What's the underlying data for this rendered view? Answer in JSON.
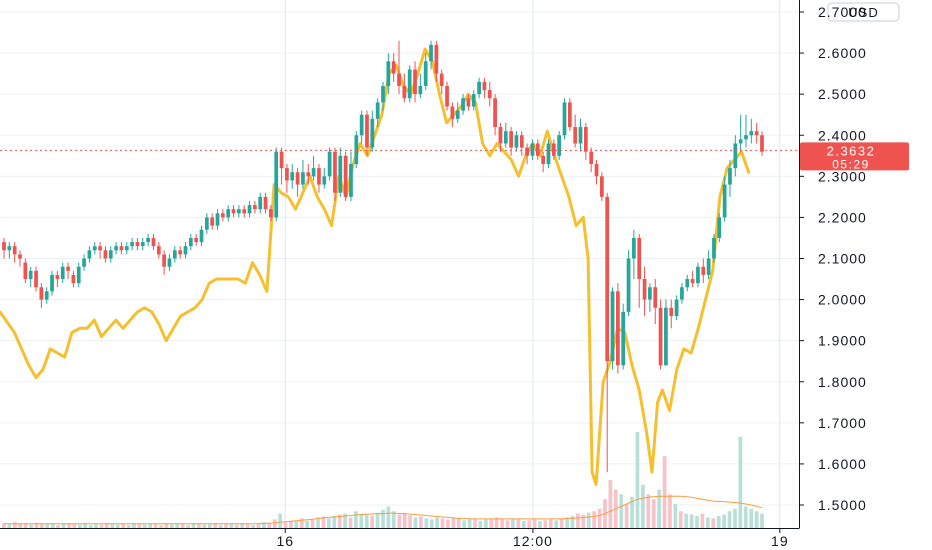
{
  "chart_data": {
    "type": "candlestick",
    "currency": "USD",
    "y_ticks": [
      "2.7000",
      "2.6000",
      "2.5000",
      "2.4000",
      "2.3000",
      "2.2000",
      "2.1000",
      "2.0000",
      "1.9000",
      "1.8000",
      "1.7000",
      "1.6000",
      "1.5000"
    ],
    "y_tick_values": [
      2.7,
      2.6,
      2.5,
      2.4,
      2.3,
      2.2,
      2.1,
      2.0,
      1.9,
      1.8,
      1.7,
      1.6,
      1.5
    ],
    "ylim": [
      1.45,
      2.78
    ],
    "x_ticks": [
      {
        "label": "16",
        "t": 0.357
      },
      {
        "label": "12:00",
        "t": 0.667
      },
      {
        "label": "19",
        "t": 0.976
      }
    ],
    "price": {
      "last": "2.3632",
      "countdown": "05:29",
      "value": 2.3632
    },
    "candles": [
      [
        2.14,
        2.12,
        2.15,
        2.1
      ],
      [
        2.12,
        2.13,
        2.14,
        2.1
      ],
      [
        2.13,
        2.11,
        2.14,
        2.09
      ],
      [
        2.11,
        2.1,
        2.12,
        2.08
      ],
      [
        2.09,
        2.05,
        2.1,
        2.04
      ],
      [
        2.05,
        2.07,
        2.08,
        2.03
      ],
      [
        2.07,
        2.03,
        2.08,
        2.02
      ],
      [
        2.03,
        2.0,
        2.04,
        1.98
      ],
      [
        2.0,
        2.02,
        2.03,
        1.99
      ],
      [
        2.02,
        2.06,
        2.07,
        2.01
      ],
      [
        2.06,
        2.05,
        2.07,
        2.03
      ],
      [
        2.05,
        2.08,
        2.09,
        2.04
      ],
      [
        2.08,
        2.07,
        2.09,
        2.05
      ],
      [
        2.06,
        2.04,
        2.07,
        2.03
      ],
      [
        2.04,
        2.08,
        2.09,
        2.03
      ],
      [
        2.08,
        2.1,
        2.11,
        2.07
      ],
      [
        2.1,
        2.12,
        2.13,
        2.09
      ],
      [
        2.12,
        2.13,
        2.14,
        2.11
      ],
      [
        2.13,
        2.12,
        2.14,
        2.1
      ],
      [
        2.12,
        2.1,
        2.13,
        2.09
      ],
      [
        2.1,
        2.12,
        2.13,
        2.09
      ],
      [
        2.12,
        2.13,
        2.14,
        2.11
      ],
      [
        2.13,
        2.12,
        2.14,
        2.11
      ],
      [
        2.12,
        2.13,
        2.14,
        2.11
      ],
      [
        2.13,
        2.14,
        2.15,
        2.12
      ],
      [
        2.14,
        2.13,
        2.15,
        2.12
      ],
      [
        2.13,
        2.14,
        2.15,
        2.12
      ],
      [
        2.14,
        2.15,
        2.16,
        2.13
      ],
      [
        2.15,
        2.13,
        2.16,
        2.12
      ],
      [
        2.13,
        2.11,
        2.14,
        2.1
      ],
      [
        2.11,
        2.08,
        2.12,
        2.06
      ],
      [
        2.08,
        2.1,
        2.11,
        2.07
      ],
      [
        2.1,
        2.12,
        2.13,
        2.09
      ],
      [
        2.12,
        2.11,
        2.13,
        2.1
      ],
      [
        2.11,
        2.13,
        2.14,
        2.1
      ],
      [
        2.13,
        2.15,
        2.16,
        2.12
      ],
      [
        2.15,
        2.14,
        2.16,
        2.13
      ],
      [
        2.14,
        2.17,
        2.18,
        2.13
      ],
      [
        2.17,
        2.2,
        2.21,
        2.16
      ],
      [
        2.2,
        2.18,
        2.21,
        2.17
      ],
      [
        2.18,
        2.21,
        2.22,
        2.17
      ],
      [
        2.21,
        2.2,
        2.22,
        2.19
      ],
      [
        2.2,
        2.22,
        2.23,
        2.19
      ],
      [
        2.22,
        2.21,
        2.23,
        2.2
      ],
      [
        2.21,
        2.22,
        2.23,
        2.2
      ],
      [
        2.22,
        2.21,
        2.23,
        2.2
      ],
      [
        2.21,
        2.23,
        2.24,
        2.2
      ],
      [
        2.23,
        2.22,
        2.24,
        2.21
      ],
      [
        2.22,
        2.25,
        2.26,
        2.21
      ],
      [
        2.25,
        2.22,
        2.26,
        2.21
      ],
      [
        2.22,
        2.2,
        2.23,
        2.19
      ],
      [
        2.2,
        2.36,
        2.37,
        2.19
      ],
      [
        2.36,
        2.32,
        2.37,
        2.28
      ],
      [
        2.32,
        2.29,
        2.33,
        2.26
      ],
      [
        2.29,
        2.31,
        2.33,
        2.27
      ],
      [
        2.31,
        2.28,
        2.32,
        2.25
      ],
      [
        2.28,
        2.31,
        2.34,
        2.27
      ],
      [
        2.31,
        2.3,
        2.33,
        2.28
      ],
      [
        2.3,
        2.32,
        2.35,
        2.29
      ],
      [
        2.32,
        2.28,
        2.33,
        2.26
      ],
      [
        2.28,
        2.3,
        2.32,
        2.27
      ],
      [
        2.3,
        2.36,
        2.37,
        2.29
      ],
      [
        2.36,
        2.26,
        2.37,
        2.24
      ],
      [
        2.26,
        2.35,
        2.37,
        2.25
      ],
      [
        2.35,
        2.25,
        2.36,
        2.24
      ],
      [
        2.25,
        2.33,
        2.36,
        2.24
      ],
      [
        2.33,
        2.4,
        2.41,
        2.32
      ],
      [
        2.4,
        2.45,
        2.46,
        2.38
      ],
      [
        2.45,
        2.37,
        2.46,
        2.35
      ],
      [
        2.37,
        2.44,
        2.46,
        2.36
      ],
      [
        2.44,
        2.48,
        2.49,
        2.42
      ],
      [
        2.48,
        2.52,
        2.53,
        2.46
      ],
      [
        2.52,
        2.58,
        2.6,
        2.5
      ],
      [
        2.58,
        2.55,
        2.6,
        2.53
      ],
      [
        2.55,
        2.52,
        2.63,
        2.5
      ],
      [
        2.52,
        2.49,
        2.55,
        2.48
      ],
      [
        2.49,
        2.56,
        2.57,
        2.48
      ],
      [
        2.56,
        2.5,
        2.58,
        2.48
      ],
      [
        2.5,
        2.52,
        2.55,
        2.49
      ],
      [
        2.52,
        2.58,
        2.6,
        2.51
      ],
      [
        2.58,
        2.62,
        2.63,
        2.56
      ],
      [
        2.62,
        2.55,
        2.63,
        2.53
      ],
      [
        2.55,
        2.52,
        2.56,
        2.5
      ],
      [
        2.52,
        2.47,
        2.53,
        2.46
      ],
      [
        2.47,
        2.44,
        2.48,
        2.42
      ],
      [
        2.44,
        2.46,
        2.48,
        2.43
      ],
      [
        2.46,
        2.49,
        2.5,
        2.45
      ],
      [
        2.49,
        2.47,
        2.5,
        2.46
      ],
      [
        2.47,
        2.5,
        2.51,
        2.46
      ],
      [
        2.5,
        2.53,
        2.54,
        2.49
      ],
      [
        2.53,
        2.51,
        2.54,
        2.49
      ],
      [
        2.51,
        2.49,
        2.53,
        2.47
      ],
      [
        2.49,
        2.42,
        2.5,
        2.4
      ],
      [
        2.42,
        2.38,
        2.43,
        2.36
      ],
      [
        2.38,
        2.41,
        2.43,
        2.37
      ],
      [
        2.41,
        2.37,
        2.42,
        2.35
      ],
      [
        2.37,
        2.4,
        2.41,
        2.36
      ],
      [
        2.4,
        2.37,
        2.41,
        2.35
      ],
      [
        2.37,
        2.35,
        2.38,
        2.33
      ],
      [
        2.35,
        2.38,
        2.39,
        2.34
      ],
      [
        2.38,
        2.35,
        2.39,
        2.34
      ],
      [
        2.35,
        2.33,
        2.36,
        2.31
      ],
      [
        2.33,
        2.38,
        2.39,
        2.32
      ],
      [
        2.38,
        2.35,
        2.39,
        2.34
      ],
      [
        2.35,
        2.4,
        2.41,
        2.34
      ],
      [
        2.4,
        2.48,
        2.49,
        2.39
      ],
      [
        2.48,
        2.42,
        2.49,
        2.41
      ],
      [
        2.42,
        2.38,
        2.45,
        2.37
      ],
      [
        2.38,
        2.42,
        2.44,
        2.36
      ],
      [
        2.42,
        2.36,
        2.43,
        2.34
      ],
      [
        2.36,
        2.33,
        2.37,
        2.31
      ],
      [
        2.33,
        2.3,
        2.34,
        2.28
      ],
      [
        2.3,
        2.25,
        2.31,
        2.24
      ],
      [
        2.25,
        1.85,
        2.26,
        1.58
      ],
      [
        1.85,
        2.02,
        2.03,
        1.83
      ],
      [
        2.02,
        1.84,
        2.04,
        1.82
      ],
      [
        1.84,
        1.97,
        1.99,
        1.83
      ],
      [
        1.97,
        2.1,
        2.12,
        1.96
      ],
      [
        2.1,
        2.15,
        2.17,
        2.05
      ],
      [
        2.15,
        2.05,
        2.16,
        1.98
      ],
      [
        2.05,
        2.0,
        2.08,
        1.96
      ],
      [
        2.0,
        2.03,
        2.04,
        1.97
      ],
      [
        2.03,
        1.98,
        2.05,
        1.94
      ],
      [
        1.98,
        1.84,
        2.0,
        1.83
      ],
      [
        1.84,
        1.98,
        2.0,
        1.84
      ],
      [
        1.98,
        1.96,
        2.0,
        1.93
      ],
      [
        1.96,
        2.0,
        2.01,
        1.95
      ],
      [
        2.0,
        2.03,
        2.04,
        1.99
      ],
      [
        2.03,
        2.05,
        2.06,
        2.02
      ],
      [
        2.05,
        2.04,
        2.07,
        2.03
      ],
      [
        2.04,
        2.08,
        2.09,
        2.03
      ],
      [
        2.08,
        2.06,
        2.1,
        2.04
      ],
      [
        2.06,
        2.1,
        2.12,
        2.05
      ],
      [
        2.1,
        2.15,
        2.16,
        2.09
      ],
      [
        2.15,
        2.2,
        2.21,
        2.14
      ],
      [
        2.2,
        2.28,
        2.3,
        2.19
      ],
      [
        2.28,
        2.32,
        2.34,
        2.25
      ],
      [
        2.32,
        2.38,
        2.4,
        2.3
      ],
      [
        2.38,
        2.39,
        2.45,
        2.36
      ],
      [
        2.39,
        2.4,
        2.45,
        2.37
      ],
      [
        2.4,
        2.41,
        2.44,
        2.38
      ],
      [
        2.41,
        2.4,
        2.43,
        2.38
      ],
      [
        2.4,
        2.36,
        2.41,
        2.35
      ]
    ],
    "line": [
      [
        0.0,
        1.97
      ],
      [
        0.018,
        1.92
      ],
      [
        0.027,
        1.88
      ],
      [
        0.036,
        1.84
      ],
      [
        0.045,
        1.81
      ],
      [
        0.054,
        1.83
      ],
      [
        0.063,
        1.88
      ],
      [
        0.072,
        1.87
      ],
      [
        0.081,
        1.86
      ],
      [
        0.09,
        1.92
      ],
      [
        0.1,
        1.93
      ],
      [
        0.109,
        1.93
      ],
      [
        0.118,
        1.95
      ],
      [
        0.127,
        1.91
      ],
      [
        0.136,
        1.93
      ],
      [
        0.145,
        1.95
      ],
      [
        0.154,
        1.93
      ],
      [
        0.163,
        1.95
      ],
      [
        0.172,
        1.97
      ],
      [
        0.181,
        1.98
      ],
      [
        0.19,
        1.97
      ],
      [
        0.199,
        1.94
      ],
      [
        0.208,
        1.9
      ],
      [
        0.217,
        1.93
      ],
      [
        0.226,
        1.96
      ],
      [
        0.235,
        1.97
      ],
      [
        0.244,
        1.98
      ],
      [
        0.253,
        2.0
      ],
      [
        0.262,
        2.04
      ],
      [
        0.271,
        2.05
      ],
      [
        0.28,
        2.05
      ],
      [
        0.289,
        2.05
      ],
      [
        0.298,
        2.05
      ],
      [
        0.307,
        2.04
      ],
      [
        0.316,
        2.09
      ],
      [
        0.325,
        2.06
      ],
      [
        0.334,
        2.02
      ],
      [
        0.343,
        2.28
      ],
      [
        0.352,
        2.26
      ],
      [
        0.361,
        2.25
      ],
      [
        0.37,
        2.22
      ],
      [
        0.379,
        2.26
      ],
      [
        0.388,
        2.3
      ],
      [
        0.397,
        2.25
      ],
      [
        0.406,
        2.22
      ],
      [
        0.415,
        2.18
      ],
      [
        0.424,
        2.3
      ],
      [
        0.433,
        2.25
      ],
      [
        0.442,
        2.33
      ],
      [
        0.451,
        2.38
      ],
      [
        0.46,
        2.35
      ],
      [
        0.469,
        2.4
      ],
      [
        0.478,
        2.45
      ],
      [
        0.487,
        2.55
      ],
      [
        0.496,
        2.57
      ],
      [
        0.505,
        2.52
      ],
      [
        0.514,
        2.5
      ],
      [
        0.523,
        2.55
      ],
      [
        0.532,
        2.61
      ],
      [
        0.541,
        2.58
      ],
      [
        0.55,
        2.5
      ],
      [
        0.559,
        2.43
      ],
      [
        0.568,
        2.45
      ],
      [
        0.577,
        2.47
      ],
      [
        0.586,
        2.5
      ],
      [
        0.595,
        2.48
      ],
      [
        0.604,
        2.38
      ],
      [
        0.613,
        2.35
      ],
      [
        0.622,
        2.38
      ],
      [
        0.631,
        2.36
      ],
      [
        0.64,
        2.34
      ],
      [
        0.649,
        2.3
      ],
      [
        0.658,
        2.35
      ],
      [
        0.667,
        2.38
      ],
      [
        0.676,
        2.35
      ],
      [
        0.685,
        2.41
      ],
      [
        0.694,
        2.35
      ],
      [
        0.703,
        2.3
      ],
      [
        0.712,
        2.25
      ],
      [
        0.721,
        2.18
      ],
      [
        0.73,
        2.2
      ],
      [
        0.736,
        2.1
      ],
      [
        0.741,
        1.58
      ],
      [
        0.746,
        1.55
      ],
      [
        0.755,
        1.8
      ],
      [
        0.764,
        1.85
      ],
      [
        0.773,
        1.93
      ],
      [
        0.782,
        1.92
      ],
      [
        0.791,
        1.84
      ],
      [
        0.8,
        1.78
      ],
      [
        0.809,
        1.68
      ],
      [
        0.816,
        1.58
      ],
      [
        0.823,
        1.75
      ],
      [
        0.829,
        1.78
      ],
      [
        0.838,
        1.73
      ],
      [
        0.847,
        1.83
      ],
      [
        0.856,
        1.88
      ],
      [
        0.865,
        1.87
      ],
      [
        0.874,
        1.93
      ],
      [
        0.883,
        2.0
      ],
      [
        0.892,
        2.07
      ],
      [
        0.901,
        2.25
      ],
      [
        0.91,
        2.32
      ],
      [
        0.919,
        2.34
      ],
      [
        0.928,
        2.36
      ],
      [
        0.937,
        2.31
      ]
    ],
    "volume": [
      0.1,
      0.08,
      0.12,
      0.09,
      0.1,
      0.07,
      0.11,
      0.09,
      0.08,
      0.1,
      0.06,
      0.09,
      0.1,
      0.08,
      0.07,
      0.09,
      0.06,
      0.08,
      0.07,
      0.1,
      0.08,
      0.07,
      0.09,
      0.06,
      0.1,
      0.08,
      0.07,
      0.09,
      0.08,
      0.06,
      0.1,
      0.07,
      0.09,
      0.08,
      0.06,
      0.1,
      0.09,
      0.07,
      0.08,
      0.1,
      0.06,
      0.08,
      0.09,
      0.07,
      0.1,
      0.08,
      0.06,
      0.09,
      0.12,
      0.1,
      0.18,
      0.3,
      0.12,
      0.15,
      0.14,
      0.2,
      0.15,
      0.18,
      0.22,
      0.24,
      0.2,
      0.25,
      0.28,
      0.3,
      0.22,
      0.35,
      0.3,
      0.28,
      0.25,
      0.32,
      0.38,
      0.45,
      0.35,
      0.28,
      0.3,
      0.26,
      0.22,
      0.24,
      0.2,
      0.18,
      0.22,
      0.2,
      0.18,
      0.22,
      0.2,
      0.16,
      0.18,
      0.2,
      0.15,
      0.18,
      0.2,
      0.22,
      0.18,
      0.16,
      0.2,
      0.18,
      0.15,
      0.16,
      0.18,
      0.14,
      0.16,
      0.18,
      0.16,
      0.2,
      0.22,
      0.25,
      0.3,
      0.28,
      0.32,
      0.35,
      0.4,
      0.6,
      1.0,
      0.8,
      0.7,
      0.5,
      0.65,
      2.0,
      0.9,
      0.7,
      0.6,
      0.8,
      1.5,
      0.7,
      0.5,
      0.35,
      0.3,
      0.28,
      0.25,
      0.3,
      0.22,
      0.2,
      0.25,
      0.28,
      0.35,
      0.4,
      1.9,
      0.45,
      0.4,
      0.35,
      0.3
    ],
    "vol_ma": [
      0.09,
      0.09,
      0.09,
      0.09,
      0.09,
      0.09,
      0.09,
      0.09,
      0.09,
      0.09,
      0.09,
      0.09,
      0.09,
      0.09,
      0.09,
      0.09,
      0.09,
      0.09,
      0.09,
      0.09,
      0.09,
      0.09,
      0.09,
      0.09,
      0.09,
      0.09,
      0.09,
      0.09,
      0.09,
      0.09,
      0.09,
      0.09,
      0.09,
      0.09,
      0.09,
      0.09,
      0.09,
      0.09,
      0.09,
      0.09,
      0.09,
      0.09,
      0.09,
      0.09,
      0.09,
      0.09,
      0.09,
      0.09,
      0.1,
      0.1,
      0.11,
      0.12,
      0.13,
      0.14,
      0.15,
      0.16,
      0.17,
      0.18,
      0.2,
      0.21,
      0.22,
      0.23,
      0.24,
      0.25,
      0.26,
      0.27,
      0.28,
      0.29,
      0.29,
      0.3,
      0.3,
      0.31,
      0.31,
      0.3,
      0.3,
      0.29,
      0.28,
      0.27,
      0.26,
      0.25,
      0.24,
      0.23,
      0.22,
      0.21,
      0.2,
      0.2,
      0.19,
      0.19,
      0.19,
      0.19,
      0.19,
      0.19,
      0.19,
      0.19,
      0.19,
      0.19,
      0.19,
      0.19,
      0.19,
      0.19,
      0.19,
      0.19,
      0.19,
      0.19,
      0.2,
      0.2,
      0.21,
      0.22,
      0.23,
      0.24,
      0.26,
      0.3,
      0.35,
      0.4,
      0.45,
      0.5,
      0.55,
      0.6,
      0.62,
      0.64,
      0.65,
      0.66,
      0.66,
      0.66,
      0.66,
      0.66,
      0.65,
      0.64,
      0.62,
      0.6,
      0.58,
      0.56,
      0.55,
      0.55,
      0.54,
      0.53,
      0.52,
      0.5,
      0.48,
      0.45,
      0.42
    ],
    "colors": {
      "up": "#26a69a",
      "down": "#ef5350",
      "line": "#f5bf2f",
      "vol_ma": "#f59e42",
      "vol_up": "#b9e0d8",
      "vol_down": "#f7c3c8",
      "grid": "#eef0f3",
      "current_price_line": "#ef5350",
      "axis_text": "#131722",
      "label_bg": "#ef5350",
      "label_text": "#ffffff"
    },
    "grid": true
  }
}
